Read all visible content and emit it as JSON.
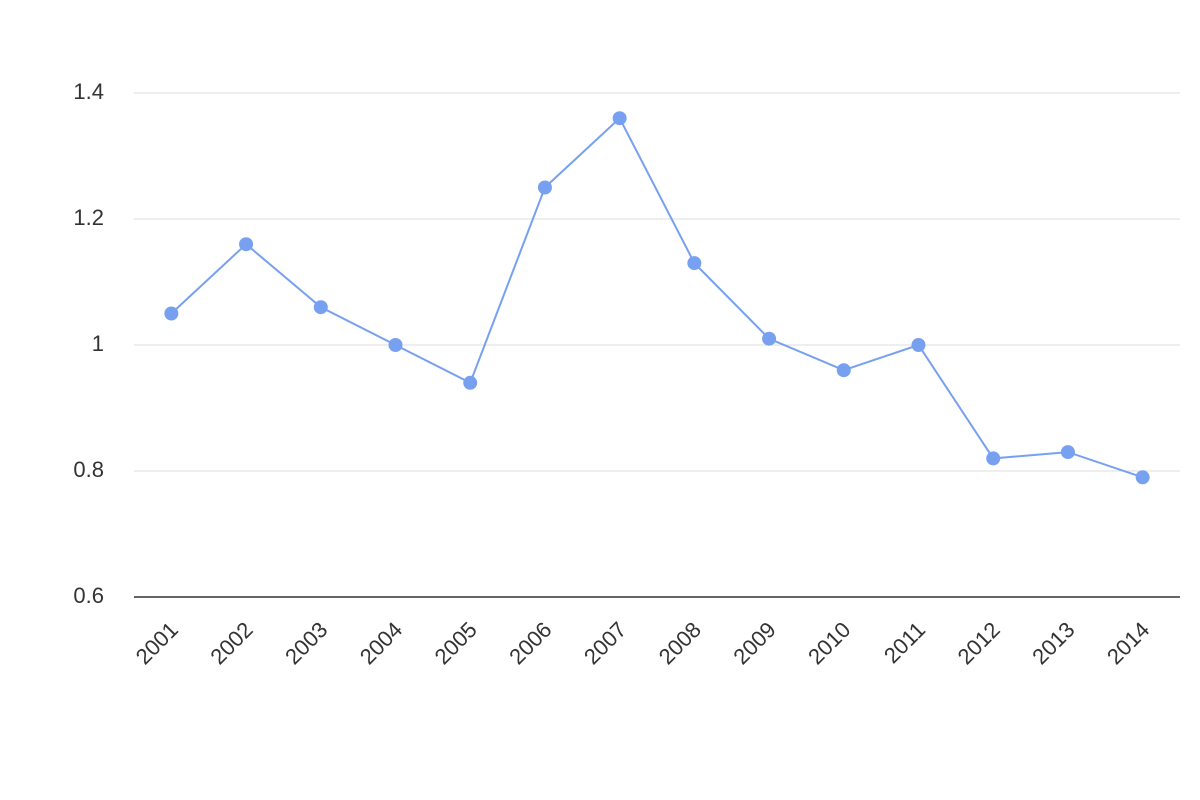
{
  "chart_data": {
    "type": "line",
    "categories": [
      "2001",
      "2002",
      "2003",
      "2004",
      "2005",
      "2006",
      "2007",
      "2008",
      "2009",
      "2010",
      "2011",
      "2012",
      "2013",
      "2014"
    ],
    "values": [
      1.05,
      1.16,
      1.06,
      1.0,
      0.94,
      1.25,
      1.36,
      1.13,
      1.01,
      0.96,
      1.0,
      0.82,
      0.83,
      0.79
    ],
    "color": "#77a1f0",
    "ylim": [
      0.6,
      1.4
    ],
    "yticks": [
      0.6,
      0.8,
      1,
      1.2,
      1.4
    ],
    "grid": true
  }
}
